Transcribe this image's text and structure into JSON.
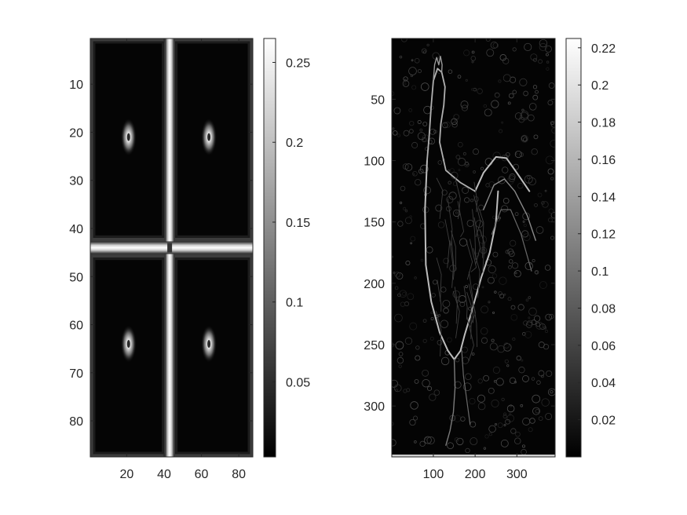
{
  "chart_data": [
    {
      "type": "heatmap",
      "title": "",
      "xlabel": "",
      "ylabel": "",
      "colormap": "gray",
      "xlim": [
        0.5,
        87.5
      ],
      "ylim": [
        87.5,
        0.5
      ],
      "xticks": [
        20,
        40,
        60,
        80
      ],
      "yticks": [
        10,
        20,
        30,
        40,
        50,
        60,
        70,
        80
      ],
      "colorbar": {
        "ticks": [
          0.05,
          0.1,
          0.15,
          0.2,
          0.25
        ],
        "range": [
          0.003,
          0.265
        ]
      },
      "features": {
        "vertical_bright_band_x": 43,
        "horizontal_bright_band_y": 44,
        "bright_spots": [
          {
            "x": 21,
            "y": 21,
            "value": 0.22
          },
          {
            "x": 64,
            "y": 21,
            "value": 0.2
          },
          {
            "x": 21,
            "y": 64,
            "value": 0.25
          },
          {
            "x": 64,
            "y": 64,
            "value": 0.24
          }
        ],
        "background_value": 0.005,
        "band_value": 0.25
      }
    },
    {
      "type": "heatmap",
      "title": "",
      "xlabel": "",
      "ylabel": "",
      "colormap": "gray",
      "xlim": [
        0.5,
        391.5
      ],
      "ylim": [
        341.5,
        0.5
      ],
      "xticks": [
        100,
        200,
        300
      ],
      "yticks": [
        50,
        100,
        150,
        200,
        250,
        300
      ],
      "colorbar": {
        "ticks": [
          0.02,
          0.04,
          0.06,
          0.08,
          0.1,
          0.12,
          0.14,
          0.16,
          0.18,
          0.2,
          0.22
        ],
        "range": [
          0.0,
          0.225
        ]
      },
      "features": {
        "subject": "edge-magnitude image (gradient outline)"
      }
    }
  ]
}
